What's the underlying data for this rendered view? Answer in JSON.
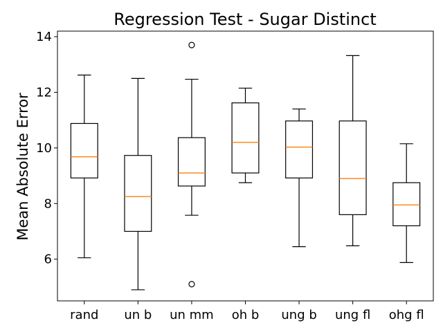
{
  "chart_data": {
    "type": "box",
    "title": "Regression Test - Sugar Distinct",
    "xlabel": "",
    "ylabel": "Mean Absolute Error",
    "ylim": [
      4.5,
      14.2
    ],
    "yticks": [
      6,
      8,
      10,
      12,
      14
    ],
    "grid": false,
    "categories": [
      "rand",
      "un b",
      "un mm",
      "oh b",
      "ung b",
      "ung fl",
      "ohg fl"
    ],
    "boxes": [
      {
        "label": "rand",
        "whisker_low": 6.05,
        "q1": 8.92,
        "median": 9.68,
        "q3": 10.88,
        "whisker_high": 12.62,
        "fliers": []
      },
      {
        "label": "un b",
        "whisker_low": 4.9,
        "q1": 7.0,
        "median": 8.25,
        "q3": 9.73,
        "whisker_high": 12.5,
        "fliers": []
      },
      {
        "label": "un mm",
        "whisker_low": 7.58,
        "q1": 8.63,
        "median": 9.1,
        "q3": 10.37,
        "whisker_high": 12.47,
        "fliers": [
          13.7,
          5.1
        ]
      },
      {
        "label": "oh b",
        "whisker_low": 8.75,
        "q1": 9.1,
        "median": 10.2,
        "q3": 11.62,
        "whisker_high": 12.15,
        "fliers": []
      },
      {
        "label": "ung b",
        "whisker_low": 6.45,
        "q1": 8.92,
        "median": 10.03,
        "q3": 10.97,
        "whisker_high": 11.4,
        "fliers": []
      },
      {
        "label": "ung fl",
        "whisker_low": 6.48,
        "q1": 7.6,
        "median": 8.9,
        "q3": 10.97,
        "whisker_high": 13.32,
        "fliers": []
      },
      {
        "label": "ohg fl",
        "whisker_low": 5.88,
        "q1": 7.2,
        "median": 7.95,
        "q3": 8.75,
        "whisker_high": 10.15,
        "fliers": []
      }
    ],
    "colors": {
      "box": "#000000",
      "median": "#ff7f0e",
      "flier": "#000000"
    }
  }
}
